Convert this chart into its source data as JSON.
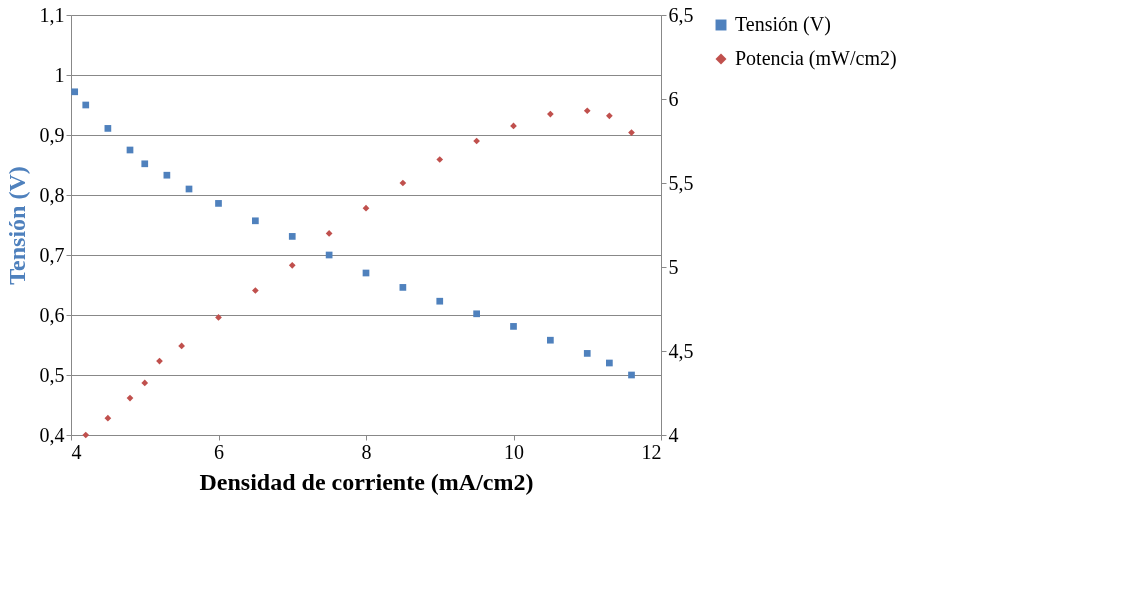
{
  "chart_data": {
    "type": "scatter",
    "xlabel": "Densidad de corriente (mA/cm2)",
    "ylabel": "Tensión (V)",
    "xlim": [
      4,
      12
    ],
    "xticks": [
      4,
      6,
      8,
      10,
      12
    ],
    "ylim": [
      0.4,
      1.1
    ],
    "yticks": [
      {
        "value": 0.4,
        "label": "0,4"
      },
      {
        "value": 0.5,
        "label": "0,5"
      },
      {
        "value": 0.6,
        "label": "0,6"
      },
      {
        "value": 0.7,
        "label": "0,7"
      },
      {
        "value": 0.8,
        "label": "0,8"
      },
      {
        "value": 0.9,
        "label": "0,9"
      },
      1,
      {
        "value": 1.1,
        "label": "1,1"
      }
    ],
    "y2lim": [
      4,
      6.5
    ],
    "y2ticks": [
      4,
      {
        "value": 4.5,
        "label": "4,5"
      },
      5,
      {
        "value": 5.5,
        "label": "5,5"
      },
      6,
      {
        "value": 6.5,
        "label": "6,5"
      }
    ],
    "grid": "y",
    "legend": "right",
    "series": [
      {
        "name": "Tensión (V)",
        "color": "#4f81bd",
        "marker": "square",
        "x": [
          4.05,
          4.2,
          4.5,
          4.8,
          5,
          5.3,
          5.6,
          6,
          6.5,
          7,
          7.5,
          8,
          8.5,
          9,
          9.5,
          10,
          10.5,
          11,
          11.3,
          11.6
        ],
        "values": [
          0.972,
          0.95,
          0.911,
          0.875,
          0.852,
          0.833,
          0.81,
          0.786,
          0.757,
          0.731,
          0.7,
          0.67,
          0.646,
          0.623,
          0.602,
          0.581,
          0.558,
          0.536,
          0.52,
          0.5
        ]
      },
      {
        "name": "Potencia (mW/cm2)",
        "color": "#c0504d",
        "marker": "diamond",
        "axis": "y2",
        "x": [
          4.2,
          4.5,
          4.8,
          5,
          5.2,
          5.5,
          6,
          6.5,
          7,
          7.5,
          8,
          8.5,
          9,
          9.5,
          10,
          10.5,
          11,
          11.3,
          11.6
        ],
        "values": [
          4.0,
          4.1,
          4.22,
          4.31,
          4.44,
          4.53,
          4.7,
          4.86,
          5.01,
          5.2,
          5.35,
          5.5,
          5.64,
          5.75,
          5.84,
          5.91,
          5.93,
          5.9,
          5.8
        ]
      }
    ]
  }
}
